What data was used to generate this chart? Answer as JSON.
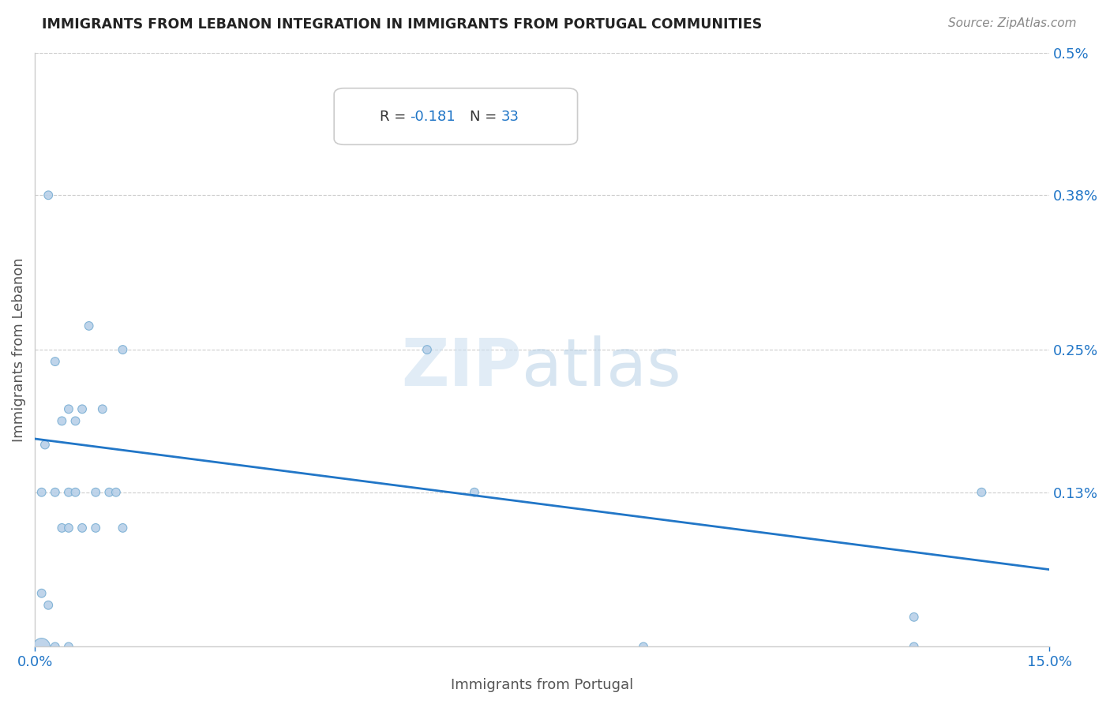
{
  "title": "IMMIGRANTS FROM LEBANON INTEGRATION IN IMMIGRANTS FROM PORTUGAL COMMUNITIES",
  "source": "Source: ZipAtlas.com",
  "xlabel": "Immigrants from Portugal",
  "ylabel": "Immigrants from Lebanon",
  "R": -0.181,
  "N": 33,
  "xlim": [
    0.0,
    0.15
  ],
  "ylim": [
    0.0,
    0.005
  ],
  "xticks": [
    0.0,
    0.15
  ],
  "xticklabels": [
    "0.0%",
    "15.0%"
  ],
  "ytick_labels_right": [
    "0.5%",
    "0.38%",
    "0.25%",
    "0.13%"
  ],
  "ytick_values_right": [
    0.005,
    0.0038,
    0.0025,
    0.0013
  ],
  "scatter_color": "#b8d0e8",
  "scatter_edge_color": "#7aafd4",
  "line_color": "#2176c7",
  "background_color": "#ffffff",
  "line_y_start": 0.00175,
  "line_y_end": 0.00065,
  "points_x": [
    0.001,
    0.001,
    0.001,
    0.0015,
    0.002,
    0.002,
    0.003,
    0.003,
    0.003,
    0.004,
    0.004,
    0.005,
    0.005,
    0.005,
    0.005,
    0.006,
    0.006,
    0.007,
    0.007,
    0.008,
    0.009,
    0.009,
    0.01,
    0.011,
    0.012,
    0.013,
    0.013,
    0.058,
    0.065,
    0.09,
    0.13,
    0.13,
    0.14
  ],
  "points_y": [
    0.0,
    0.00045,
    0.0013,
    0.0017,
    0.00035,
    0.0038,
    0.0,
    0.0013,
    0.0024,
    0.001,
    0.0019,
    0.0,
    0.0013,
    0.001,
    0.002,
    0.0013,
    0.0019,
    0.001,
    0.002,
    0.0027,
    0.001,
    0.0013,
    0.002,
    0.0013,
    0.0013,
    0.001,
    0.0025,
    0.0025,
    0.0013,
    0.0,
    0.00025,
    0.0,
    0.0013
  ],
  "points_size": [
    240,
    60,
    60,
    60,
    60,
    60,
    60,
    60,
    60,
    60,
    60,
    60,
    60,
    60,
    60,
    60,
    60,
    60,
    60,
    60,
    60,
    60,
    60,
    60,
    60,
    60,
    60,
    60,
    60,
    60,
    60,
    60,
    60
  ]
}
